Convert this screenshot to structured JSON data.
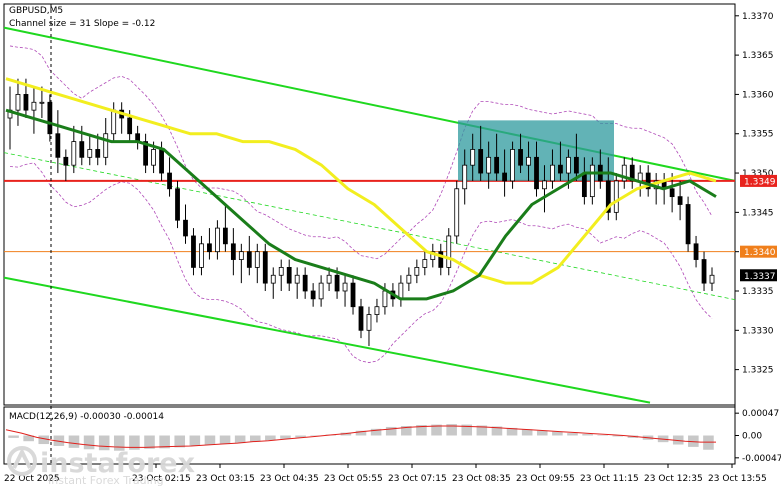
{
  "header": {
    "symbol": "GBPUSD,M5",
    "channel": "Channel size = 31 Slope = -0.12"
  },
  "macd_header": "MACD(12,26,9) -0.00030 -0.00014",
  "price_ticks": [
    "1.3370",
    "1.3365",
    "1.3360",
    "1.3355",
    "1.3350",
    "1.3345",
    "1.3340",
    "1.3335",
    "1.3330",
    "1.3325"
  ],
  "price_badges": [
    {
      "text": "1.3349",
      "color": "#e8231d"
    },
    {
      "text": "1.3340",
      "color": "#f07f1b"
    },
    {
      "text": "1.3337",
      "color": "#000000"
    }
  ],
  "macd_ticks": [
    "0.00047",
    "0.00",
    "-0.00047"
  ],
  "time_labels": [
    "23 Oct 02:15",
    "23 Oct 03:15",
    "23 Oct 04:35",
    "23 Oct 05:55",
    "23 Oct 07:15",
    "23 Oct 08:35",
    "23 Oct 09:55",
    "23 Oct 11:15",
    "23 Oct 12:35",
    "23 Oct 13:55"
  ],
  "first_time_label": "22 Oct 2025",
  "watermark": {
    "main": "instaforex",
    "sub": "Instant Forex Trading"
  },
  "chart_data": {
    "type": "candlestick",
    "title": "GBPUSD,M5",
    "ylim": [
      1.33205,
      1.33715
    ],
    "horizontal_levels": [
      {
        "value": 1.3349,
        "color": "#e8231d"
      },
      {
        "value": 1.334,
        "color": "#f07f1b"
      }
    ],
    "candles": [
      [
        1.3357,
        1.3361,
        1.3353,
        1.3358
      ],
      [
        1.3358,
        1.3362,
        1.3356,
        1.336
      ],
      [
        1.336,
        1.3362,
        1.3357,
        1.3358
      ],
      [
        1.3358,
        1.3361,
        1.3355,
        1.3359
      ],
      [
        1.3359,
        1.3361,
        1.3357,
        1.3359
      ],
      [
        1.3359,
        1.336,
        1.3354,
        1.3355
      ],
      [
        1.3355,
        1.3358,
        1.335,
        1.3352
      ],
      [
        1.3352,
        1.3353,
        1.3349,
        1.3351
      ],
      [
        1.3351,
        1.3356,
        1.335,
        1.3354
      ],
      [
        1.3354,
        1.3356,
        1.3351,
        1.3352
      ],
      [
        1.3352,
        1.3355,
        1.3351,
        1.3353
      ],
      [
        1.3353,
        1.3355,
        1.3351,
        1.3352
      ],
      [
        1.3352,
        1.3357,
        1.3351,
        1.3355
      ],
      [
        1.3355,
        1.3359,
        1.3354,
        1.3358
      ],
      [
        1.3358,
        1.3359,
        1.3355,
        1.3357
      ],
      [
        1.3357,
        1.3358,
        1.3354,
        1.3355
      ],
      [
        1.3355,
        1.3356,
        1.3353,
        1.3354
      ],
      [
        1.3354,
        1.3355,
        1.335,
        1.3351
      ],
      [
        1.3351,
        1.3354,
        1.335,
        1.3353
      ],
      [
        1.3353,
        1.3354,
        1.3349,
        1.335
      ],
      [
        1.335,
        1.3352,
        1.3347,
        1.3348
      ],
      [
        1.3348,
        1.3349,
        1.3343,
        1.3344
      ],
      [
        1.3344,
        1.3346,
        1.3341,
        1.3342
      ],
      [
        1.3342,
        1.3343,
        1.3337,
        1.3338
      ],
      [
        1.3338,
        1.3342,
        1.3337,
        1.3341
      ],
      [
        1.3341,
        1.3343,
        1.3339,
        1.334
      ],
      [
        1.334,
        1.3344,
        1.3339,
        1.3343
      ],
      [
        1.3343,
        1.3346,
        1.334,
        1.3341
      ],
      [
        1.3341,
        1.3343,
        1.3337,
        1.3339
      ],
      [
        1.3339,
        1.3341,
        1.3336,
        1.334
      ],
      [
        1.334,
        1.3342,
        1.3337,
        1.3338
      ],
      [
        1.3338,
        1.3341,
        1.3336,
        1.334
      ],
      [
        1.334,
        1.3341,
        1.3335,
        1.3336
      ],
      [
        1.3336,
        1.3338,
        1.3334,
        1.3337
      ],
      [
        1.3337,
        1.3339,
        1.3335,
        1.3338
      ],
      [
        1.3338,
        1.3339,
        1.3335,
        1.3336
      ],
      [
        1.3336,
        1.3338,
        1.3334,
        1.3337
      ],
      [
        1.3337,
        1.3338,
        1.3334,
        1.3335
      ],
      [
        1.3335,
        1.3336,
        1.3333,
        1.3334
      ],
      [
        1.3334,
        1.3337,
        1.3333,
        1.3336
      ],
      [
        1.3336,
        1.3338,
        1.3335,
        1.3337
      ],
      [
        1.3337,
        1.3338,
        1.3334,
        1.3335
      ],
      [
        1.3335,
        1.3337,
        1.3333,
        1.3336
      ],
      [
        1.3336,
        1.3337,
        1.3332,
        1.3333
      ],
      [
        1.3333,
        1.3334,
        1.3329,
        1.333
      ],
      [
        1.333,
        1.3333,
        1.3328,
        1.3332
      ],
      [
        1.3332,
        1.3334,
        1.3331,
        1.3333
      ],
      [
        1.3333,
        1.3336,
        1.3332,
        1.3335
      ],
      [
        1.3335,
        1.3336,
        1.3333,
        1.3334
      ],
      [
        1.3334,
        1.3337,
        1.3333,
        1.3336
      ],
      [
        1.3336,
        1.3338,
        1.3335,
        1.3337
      ],
      [
        1.3337,
        1.3339,
        1.3336,
        1.3338
      ],
      [
        1.3338,
        1.334,
        1.3337,
        1.3339
      ],
      [
        1.3339,
        1.3341,
        1.3338,
        1.334
      ],
      [
        1.334,
        1.3341,
        1.3337,
        1.3338
      ],
      [
        1.3338,
        1.3343,
        1.3337,
        1.3342
      ],
      [
        1.3342,
        1.3349,
        1.3341,
        1.3348
      ],
      [
        1.3348,
        1.3353,
        1.3346,
        1.3351
      ],
      [
        1.3351,
        1.3355,
        1.3349,
        1.3353
      ],
      [
        1.3353,
        1.3356,
        1.3349,
        1.335
      ],
      [
        1.335,
        1.3354,
        1.3348,
        1.3352
      ],
      [
        1.3352,
        1.3355,
        1.3349,
        1.335
      ],
      [
        1.335,
        1.3353,
        1.3347,
        1.3349
      ],
      [
        1.3349,
        1.3354,
        1.3348,
        1.3353
      ],
      [
        1.3353,
        1.3355,
        1.335,
        1.3351
      ],
      [
        1.3351,
        1.3354,
        1.3349,
        1.3352
      ],
      [
        1.3352,
        1.3354,
        1.3347,
        1.3348
      ],
      [
        1.3348,
        1.3351,
        1.3345,
        1.3349
      ],
      [
        1.3349,
        1.3353,
        1.3348,
        1.3351
      ],
      [
        1.3351,
        1.3354,
        1.3349,
        1.335
      ],
      [
        1.335,
        1.3353,
        1.3348,
        1.3352
      ],
      [
        1.3352,
        1.3355,
        1.3349,
        1.335
      ],
      [
        1.335,
        1.3352,
        1.3346,
        1.3347
      ],
      [
        1.3347,
        1.3352,
        1.3346,
        1.3351
      ],
      [
        1.3351,
        1.3353,
        1.3348,
        1.3349
      ],
      [
        1.3349,
        1.3352,
        1.3344,
        1.3345
      ],
      [
        1.3345,
        1.335,
        1.3344,
        1.3349
      ],
      [
        1.3349,
        1.3352,
        1.3348,
        1.3351
      ],
      [
        1.3351,
        1.3352,
        1.3348,
        1.3349
      ],
      [
        1.3349,
        1.3351,
        1.3347,
        1.335
      ],
      [
        1.335,
        1.3351,
        1.3347,
        1.3348
      ],
      [
        1.3348,
        1.335,
        1.3346,
        1.3349
      ],
      [
        1.3349,
        1.335,
        1.3346,
        1.3348
      ],
      [
        1.3348,
        1.335,
        1.3345,
        1.3347
      ],
      [
        1.3347,
        1.3349,
        1.3344,
        1.3346
      ],
      [
        1.3346,
        1.3347,
        1.334,
        1.3341
      ],
      [
        1.3341,
        1.3342,
        1.3338,
        1.3339
      ],
      [
        1.3339,
        1.334,
        1.3335,
        1.3336
      ],
      [
        1.3336,
        1.3338,
        1.3335,
        1.3337
      ]
    ],
    "ma_yellow": [
      1.3362,
      1.3361,
      1.336,
      1.3359,
      1.3358,
      1.3357,
      1.3356,
      1.3355,
      1.3355,
      1.3354,
      1.3354,
      1.3353,
      1.3351,
      1.3348,
      1.3346,
      1.3343,
      1.334,
      1.3339,
      1.3337,
      1.3336,
      1.3336,
      1.3338,
      1.3342,
      1.3346,
      1.3348,
      1.3349,
      1.335,
      1.3349
    ],
    "ma_green": [
      1.3358,
      1.3357,
      1.3356,
      1.3355,
      1.3354,
      1.3354,
      1.3353,
      1.335,
      1.3347,
      1.3344,
      1.3341,
      1.3339,
      1.3338,
      1.3337,
      1.3336,
      1.3334,
      1.3334,
      1.3335,
      1.3337,
      1.3342,
      1.3346,
      1.3348,
      1.335,
      1.335,
      1.3349,
      1.3348,
      1.3349,
      1.3347
    ],
    "channel": {
      "slope_label": "Channel size = 31 Slope = -0.12"
    },
    "macd_hist": [
      -5e-05,
      -0.00012,
      -0.00018,
      -0.00022,
      -0.00026,
      -0.00029,
      -0.00031,
      -0.00032,
      -0.0003,
      -0.00028,
      -0.00027,
      -0.00025,
      -0.00022,
      -0.0002,
      -0.00018,
      -0.00016,
      -0.00013,
      -0.0001,
      -7e-05,
      -4e-05,
      -1e-05,
      2e-05,
      6e-05,
      0.0001,
      0.00014,
      0.00018,
      0.0002,
      0.00022,
      0.00023,
      0.00024,
      0.00023,
      0.00021,
      0.00019,
      0.00016,
      0.00013,
      0.0001,
      8e-05,
      5e-05,
      3e-05,
      1e-05,
      -2e-05,
      -5e-05,
      -9e-05,
      -0.00014,
      -0.00019,
      -0.00024,
      -0.0003
    ],
    "macd_signal": [
      0.00012,
      5e-05,
      -4e-05,
      -0.0001,
      -0.00015,
      -0.00019,
      -0.00022,
      -0.00024,
      -0.00025,
      -0.00025,
      -0.00024,
      -0.00023,
      -0.00022,
      -0.0002,
      -0.00018,
      -0.00016,
      -0.00013,
      -0.00011,
      -8e-05,
      -5e-05,
      -2e-05,
      1e-05,
      4e-05,
      8e-05,
      0.00011,
      0.00014,
      0.00017,
      0.00019,
      0.0002,
      0.0002,
      0.00019,
      0.00018,
      0.00016,
      0.00014,
      0.00012,
      0.0001,
      8e-05,
      6e-05,
      4e-05,
      2e-05,
      0.0,
      -3e-05,
      -6e-05,
      -9e-05,
      -0.00012,
      -0.00014,
      -0.00014
    ],
    "macd_ylim": [
      -0.0006,
      0.0006
    ]
  }
}
